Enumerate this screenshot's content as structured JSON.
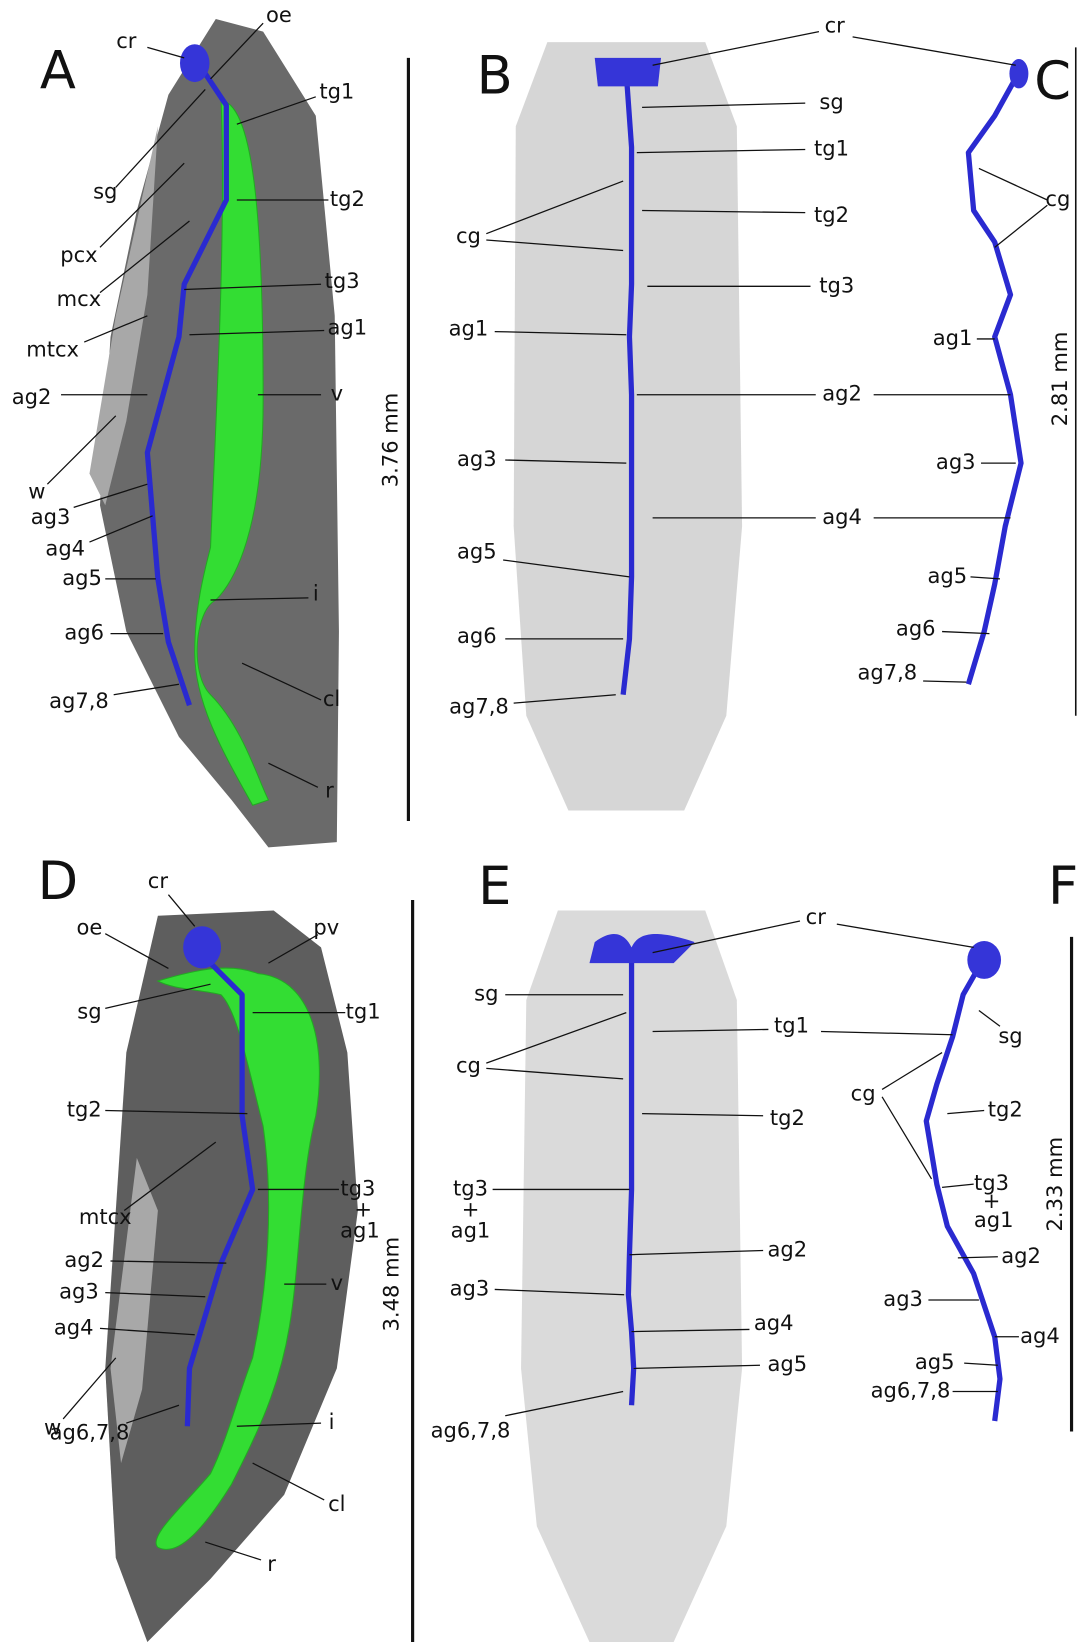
{
  "panels": [
    {
      "letter": "A",
      "scale_bar": "3.76 mm",
      "labels": [
        "cr",
        "oe",
        "tg1",
        "sg",
        "tg2",
        "pcx",
        "mcx",
        "tg3",
        "mtcx",
        "ag1",
        "ag2",
        "v",
        "w",
        "ag3",
        "ag4",
        "ag5",
        "i",
        "ag6",
        "cl",
        "ag7,8",
        "r"
      ]
    },
    {
      "letter": "B",
      "labels": [
        "cr",
        "sg",
        "tg1",
        "tg2",
        "cg",
        "tg3",
        "ag1",
        "ag2",
        "ag3",
        "ag4",
        "ag5",
        "ag6",
        "ag7,8"
      ]
    },
    {
      "letter": "C",
      "scale_bar": "2.81 mm",
      "labels": [
        "cg",
        "ag1",
        "ag3",
        "ag5",
        "ag6",
        "ag7,8"
      ]
    },
    {
      "letter": "D",
      "scale_bar": "3.48 mm",
      "labels": [
        "cr",
        "oe",
        "pv",
        "sg",
        "tg1",
        "tg2",
        "mtcx",
        "tg3",
        "+",
        "ag1",
        "ag2",
        "v",
        "ag3",
        "ag4",
        "w",
        "ag6,7,8",
        "i",
        "cl",
        "r"
      ]
    },
    {
      "letter": "E",
      "labels": [
        "cr",
        "sg",
        "tg1",
        "cg",
        "tg2",
        "tg3",
        "+",
        "ag1",
        "ag2",
        "ag3",
        "ag4",
        "ag5",
        "ag6,7,8"
      ]
    },
    {
      "letter": "F",
      "scale_bar": "2.33 mm",
      "labels": [
        "sg",
        "cg",
        "tg2",
        "tg3",
        "+",
        "ag1",
        "ag2",
        "ag3",
        "ag4",
        "ag5",
        "ag6,7,8"
      ]
    }
  ]
}
